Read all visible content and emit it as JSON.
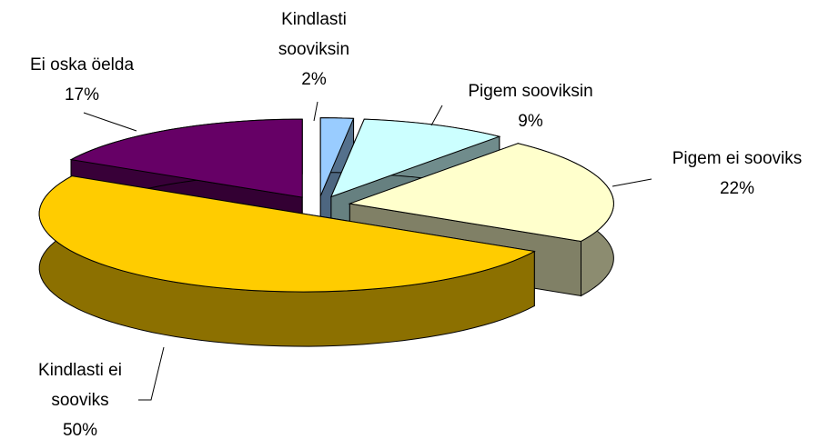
{
  "chart_data": {
    "type": "pie3d",
    "categories": [
      "Kindlasti sooviksin",
      "Pigem sooviksin",
      "Pigem ei sooviks",
      "Kindlasti ei sooviks",
      "Ei oska öelda"
    ],
    "values": [
      2,
      9,
      22,
      50,
      17
    ],
    "value_labels": [
      "2%",
      "9%",
      "22%",
      "50%",
      "17%"
    ],
    "colors": [
      "#99ccff",
      "#ccffff",
      "#ffffcc",
      "#ffcc00",
      "#660066"
    ]
  }
}
